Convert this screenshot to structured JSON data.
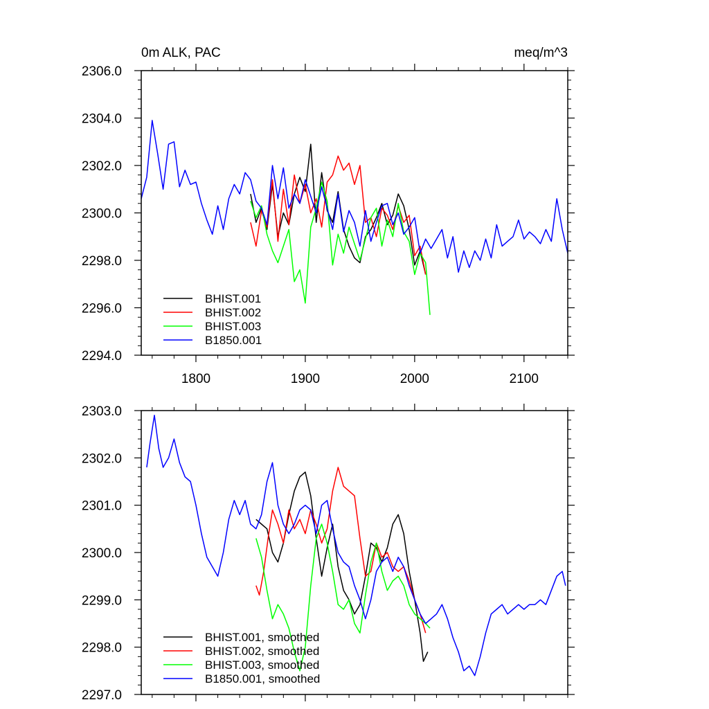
{
  "chart_data": [
    {
      "type": "line",
      "title_left": "0m ALK, PAC",
      "title_right": "meq/m^3",
      "xlim": [
        1750,
        2140
      ],
      "ylim": [
        2294.0,
        2306.0
      ],
      "x_ticks": [
        1800,
        1900,
        2000,
        2100
      ],
      "x_tick_labels": [
        "1800",
        "1900",
        "2000",
        "2100"
      ],
      "y_ticks": [
        2294.0,
        2296.0,
        2298.0,
        2300.0,
        2302.0,
        2304.0,
        2306.0
      ],
      "y_tick_labels": [
        "2294.0",
        "2296.0",
        "2298.0",
        "2300.0",
        "2302.0",
        "2304.0",
        "2306.0"
      ],
      "legend_position": "bottom-left",
      "grid": false,
      "series": [
        {
          "name": "BHIST.001",
          "color": "#000000",
          "x": [
            1850,
            1855,
            1860,
            1865,
            1870,
            1875,
            1880,
            1885,
            1890,
            1895,
            1900,
            1905,
            1910,
            1915,
            1920,
            1925,
            1930,
            1935,
            1940,
            1945,
            1950,
            1955,
            1960,
            1965,
            1970,
            1975,
            1980,
            1985,
            1990,
            1995,
            2000,
            2005,
            2010
          ],
          "y": [
            2300.8,
            2299.6,
            2300.2,
            2299.3,
            2301.2,
            2299.0,
            2300.0,
            2299.5,
            2300.8,
            2301.5,
            2300.9,
            2302.9,
            2299.6,
            2301.7,
            2300.1,
            2299.6,
            2300.9,
            2299.3,
            2298.6,
            2298.1,
            2297.9,
            2299.0,
            2299.3,
            2299.8,
            2300.4,
            2299.5,
            2299.9,
            2300.8,
            2300.3,
            2299.3,
            2297.8,
            2298.4,
            2297.4
          ]
        },
        {
          "name": "BHIST.002",
          "color": "#ff0000",
          "x": [
            1850,
            1855,
            1860,
            1865,
            1870,
            1875,
            1880,
            1885,
            1890,
            1895,
            1900,
            1905,
            1910,
            1915,
            1920,
            1925,
            1930,
            1935,
            1940,
            1945,
            1950,
            1955,
            1960,
            1965,
            1970,
            1975,
            1980,
            1985,
            1990,
            1995,
            2000,
            2005,
            2010
          ],
          "y": [
            2299.6,
            2298.6,
            2300.1,
            2299.4,
            2301.4,
            2298.8,
            2301.0,
            2299.5,
            2301.6,
            2300.4,
            2301.2,
            2300.0,
            2300.6,
            2299.4,
            2301.3,
            2301.6,
            2302.4,
            2301.8,
            2302.1,
            2301.2,
            2302.0,
            2299.6,
            2299.8,
            2299.0,
            2300.2,
            2299.9,
            2299.3,
            2300.3,
            2299.6,
            2299.9,
            2298.2,
            2298.6,
            2297.4
          ]
        },
        {
          "name": "BHIST.003",
          "color": "#00ff00",
          "x": [
            1850,
            1855,
            1860,
            1865,
            1870,
            1875,
            1880,
            1885,
            1890,
            1895,
            1900,
            1905,
            1910,
            1915,
            1920,
            1925,
            1930,
            1935,
            1940,
            1945,
            1950,
            1955,
            1960,
            1965,
            1970,
            1975,
            1980,
            1985,
            1990,
            1995,
            2000,
            2005,
            2010,
            2014
          ],
          "y": [
            2300.5,
            2299.8,
            2300.3,
            2299.1,
            2298.4,
            2297.9,
            2298.6,
            2299.3,
            2297.1,
            2297.6,
            2296.2,
            2299.4,
            2300.2,
            2301.3,
            2300.5,
            2297.8,
            2299.1,
            2298.3,
            2299.4,
            2298.7,
            2298.0,
            2298.9,
            2299.8,
            2300.2,
            2298.6,
            2299.7,
            2299.0,
            2300.4,
            2299.2,
            2298.8,
            2297.4,
            2298.3,
            2297.9,
            2295.7
          ]
        },
        {
          "name": "B1850.001",
          "color": "#0000ff",
          "x": [
            1750,
            1755,
            1760,
            1765,
            1770,
            1775,
            1780,
            1785,
            1790,
            1795,
            1800,
            1805,
            1810,
            1815,
            1820,
            1825,
            1830,
            1835,
            1840,
            1845,
            1850,
            1855,
            1860,
            1865,
            1870,
            1875,
            1880,
            1885,
            1890,
            1895,
            1900,
            1905,
            1910,
            1915,
            1920,
            1925,
            1930,
            1935,
            1940,
            1945,
            1950,
            1955,
            1960,
            1965,
            1970,
            1975,
            1980,
            1985,
            1990,
            1995,
            2000,
            2005,
            2010,
            2015,
            2020,
            2025,
            2030,
            2035,
            2040,
            2045,
            2050,
            2055,
            2060,
            2065,
            2070,
            2075,
            2080,
            2085,
            2090,
            2095,
            2100,
            2105,
            2110,
            2115,
            2120,
            2125,
            2130,
            2135,
            2140
          ],
          "y": [
            2300.6,
            2301.5,
            2303.9,
            2302.5,
            2301.0,
            2302.9,
            2303.0,
            2301.1,
            2301.8,
            2301.2,
            2301.3,
            2300.4,
            2299.7,
            2299.1,
            2300.3,
            2299.3,
            2300.6,
            2301.2,
            2300.8,
            2301.7,
            2301.4,
            2300.5,
            2300.2,
            2299.5,
            2302.0,
            2300.6,
            2301.9,
            2300.2,
            2300.8,
            2300.4,
            2301.4,
            2300.7,
            2300.0,
            2301.1,
            2300.2,
            2299.3,
            2300.8,
            2299.2,
            2300.1,
            2299.6,
            2298.6,
            2300.1,
            2298.8,
            2299.6,
            2300.3,
            2300.4,
            2299.5,
            2300.0,
            2299.1,
            2299.4,
            2299.8,
            2298.3,
            2298.9,
            2298.5,
            2298.9,
            2299.3,
            2298.1,
            2299.0,
            2297.5,
            2298.4,
            2297.7,
            2298.4,
            2298.0,
            2298.9,
            2298.1,
            2299.5,
            2298.6,
            2298.8,
            2299.0,
            2299.7,
            2298.9,
            2299.2,
            2299.0,
            2298.7,
            2299.3,
            2298.8,
            2300.6,
            2299.3,
            2298.3
          ]
        }
      ]
    },
    {
      "type": "line",
      "xlim": [
        1750,
        2140
      ],
      "ylim": [
        2297.0,
        2303.0
      ],
      "x_ticks": [
        1800,
        1900,
        2000,
        2100
      ],
      "y_ticks": [
        2297.0,
        2298.0,
        2299.0,
        2300.0,
        2301.0,
        2302.0,
        2303.0
      ],
      "y_tick_labels": [
        "2297.0",
        "2298.0",
        "2299.0",
        "2300.0",
        "2301.0",
        "2302.0",
        "2303.0"
      ],
      "legend_position": "bottom-left",
      "grid": false,
      "series": [
        {
          "name": "BHIST.001, smoothed",
          "color": "#000000",
          "x": [
            1855,
            1860,
            1865,
            1870,
            1875,
            1880,
            1885,
            1890,
            1895,
            1900,
            1905,
            1910,
            1915,
            1920,
            1925,
            1930,
            1935,
            1940,
            1945,
            1950,
            1955,
            1960,
            1965,
            1970,
            1975,
            1980,
            1985,
            1990,
            1995,
            2000,
            2005,
            2008,
            2012
          ],
          "y": [
            2300.7,
            2300.6,
            2300.5,
            2300.0,
            2299.8,
            2300.2,
            2300.8,
            2301.3,
            2301.6,
            2301.7,
            2301.2,
            2300.3,
            2299.5,
            2300.1,
            2300.6,
            2299.7,
            2299.2,
            2299.0,
            2298.7,
            2298.9,
            2299.5,
            2300.2,
            2300.1,
            2299.8,
            2300.1,
            2300.6,
            2300.8,
            2300.4,
            2299.6,
            2299.0,
            2298.3,
            2297.7,
            2297.9
          ]
        },
        {
          "name": "BHIST.002, smoothed",
          "color": "#ff0000",
          "x": [
            1855,
            1858,
            1862,
            1866,
            1870,
            1875,
            1880,
            1885,
            1890,
            1895,
            1900,
            1905,
            1910,
            1915,
            1920,
            1925,
            1930,
            1935,
            1940,
            1945,
            1950,
            1955,
            1960,
            1965,
            1970,
            1975,
            1980,
            1985,
            1990,
            1995,
            2000,
            2005,
            2010
          ],
          "y": [
            2299.3,
            2299.1,
            2299.6,
            2300.3,
            2300.9,
            2300.6,
            2300.2,
            2300.9,
            2300.5,
            2300.7,
            2300.4,
            2300.9,
            2300.6,
            2300.2,
            2300.5,
            2301.3,
            2301.8,
            2301.4,
            2301.3,
            2301.2,
            2300.3,
            2299.5,
            2299.6,
            2300.2,
            2299.9,
            2300.0,
            2299.7,
            2299.6,
            2299.7,
            2299.4,
            2299.0,
            2298.7,
            2298.3
          ]
        },
        {
          "name": "BHIST.003, smoothed",
          "color": "#00ff00",
          "x": [
            1855,
            1860,
            1865,
            1870,
            1875,
            1880,
            1885,
            1890,
            1895,
            1900,
            1905,
            1910,
            1915,
            1920,
            1925,
            1930,
            1935,
            1940,
            1945,
            1950,
            1955,
            1960,
            1965,
            1970,
            1975,
            1980,
            1985,
            1990,
            1995,
            2000,
            2005,
            2010,
            2014
          ],
          "y": [
            2300.3,
            2299.9,
            2299.2,
            2298.6,
            2298.9,
            2298.7,
            2298.4,
            2297.9,
            2297.5,
            2298.0,
            2299.3,
            2300.3,
            2300.6,
            2300.2,
            2299.6,
            2298.9,
            2298.8,
            2299.0,
            2298.5,
            2298.3,
            2299.1,
            2299.8,
            2300.2,
            2299.6,
            2299.2,
            2299.4,
            2299.5,
            2299.3,
            2298.9,
            2298.7,
            2298.6,
            2298.5,
            2298.4
          ]
        },
        {
          "name": "B1850.001, smoothed",
          "color": "#0000ff",
          "x": [
            1755,
            1758,
            1762,
            1766,
            1770,
            1775,
            1780,
            1785,
            1790,
            1795,
            1800,
            1805,
            1810,
            1815,
            1820,
            1825,
            1830,
            1835,
            1840,
            1845,
            1850,
            1855,
            1860,
            1865,
            1870,
            1875,
            1880,
            1885,
            1890,
            1895,
            1900,
            1905,
            1910,
            1915,
            1920,
            1925,
            1930,
            1935,
            1940,
            1945,
            1950,
            1955,
            1960,
            1965,
            1970,
            1975,
            1980,
            1985,
            1990,
            1995,
            2000,
            2005,
            2010,
            2015,
            2020,
            2025,
            2030,
            2035,
            2040,
            2045,
            2050,
            2055,
            2060,
            2065,
            2070,
            2075,
            2080,
            2085,
            2090,
            2095,
            2100,
            2105,
            2110,
            2115,
            2120,
            2125,
            2130,
            2135,
            2138
          ],
          "y": [
            2301.8,
            2302.3,
            2302.9,
            2302.2,
            2301.8,
            2302.0,
            2302.4,
            2301.9,
            2301.6,
            2301.5,
            2301.0,
            2300.4,
            2299.9,
            2299.7,
            2299.5,
            2300.0,
            2300.7,
            2301.1,
            2300.8,
            2301.1,
            2300.6,
            2300.5,
            2300.8,
            2301.5,
            2301.9,
            2301.0,
            2300.6,
            2300.4,
            2300.6,
            2300.9,
            2301.0,
            2300.9,
            2300.4,
            2301.0,
            2301.1,
            2300.5,
            2300.0,
            2299.8,
            2299.7,
            2299.3,
            2299.0,
            2298.6,
            2299.0,
            2299.6,
            2299.8,
            2299.9,
            2299.6,
            2299.9,
            2299.7,
            2299.3,
            2299.0,
            2298.7,
            2298.5,
            2298.6,
            2298.7,
            2298.9,
            2298.6,
            2298.2,
            2297.9,
            2297.5,
            2297.6,
            2297.4,
            2297.8,
            2298.3,
            2298.7,
            2298.8,
            2298.9,
            2298.7,
            2298.8,
            2298.9,
            2298.8,
            2298.9,
            2298.9,
            2299.0,
            2298.9,
            2299.2,
            2299.5,
            2299.6,
            2299.3
          ]
        }
      ]
    }
  ]
}
